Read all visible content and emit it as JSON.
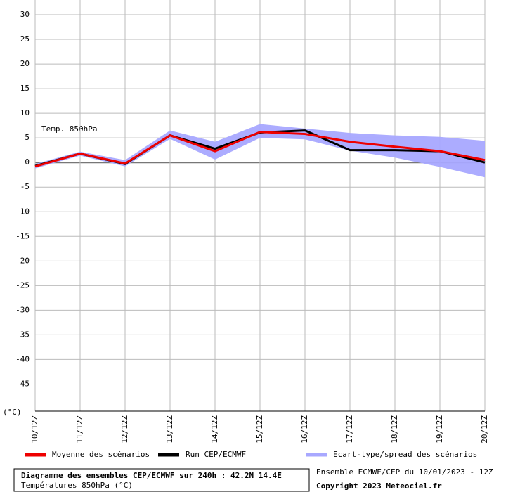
{
  "chart_data": {
    "type": "line",
    "title": "Diagramme des ensembles CEP/ECMWF sur 240h : 42.2N 14.4E",
    "subtitle": "Températures 850hPa (°C)",
    "run_info": "Ensemble ECMWF/CEP du 10/01/2023 - 12Z",
    "copyright": "Copyright 2023 Meteociel.fr",
    "annotation": "Temp. 850hPa",
    "y_label": "(°C)",
    "categories": [
      "10/12Z",
      "11/12Z",
      "12/12Z",
      "13/12Z",
      "14/12Z",
      "15/12Z",
      "16/12Z",
      "17/12Z",
      "18/12Z",
      "19/12Z",
      "20/12Z"
    ],
    "series": [
      {
        "name": "Moyenne des scénarios",
        "color": "#ee0000",
        "values": [
          -0.8,
          1.8,
          -0.2,
          5.5,
          2.3,
          6.2,
          5.8,
          4.2,
          3.2,
          2.3,
          0.5
        ]
      },
      {
        "name": "Run CEP/ECMWF",
        "color": "#000000",
        "values": [
          -0.7,
          1.8,
          -0.3,
          5.5,
          2.8,
          6.1,
          6.5,
          2.5,
          2.5,
          2.3,
          0
        ]
      },
      {
        "name": "Ecart-type/spread des scénarios",
        "color": "#a8a8ff",
        "upper": [
          -0.3,
          2.2,
          0.5,
          6.5,
          4.2,
          7.8,
          6.9,
          6.0,
          5.5,
          5.2,
          4.4
        ],
        "lower": [
          -1.2,
          1.4,
          -0.8,
          4.8,
          0.6,
          5.0,
          4.7,
          2.4,
          1.0,
          -0.9,
          -3.0
        ]
      }
    ],
    "ylim": [
      -50.5,
      33
    ],
    "yticks": [
      -45,
      -40,
      -35,
      -30,
      -25,
      -20,
      -15,
      -10,
      -5,
      0,
      5,
      10,
      15,
      20,
      25,
      30
    ],
    "grid": true
  }
}
